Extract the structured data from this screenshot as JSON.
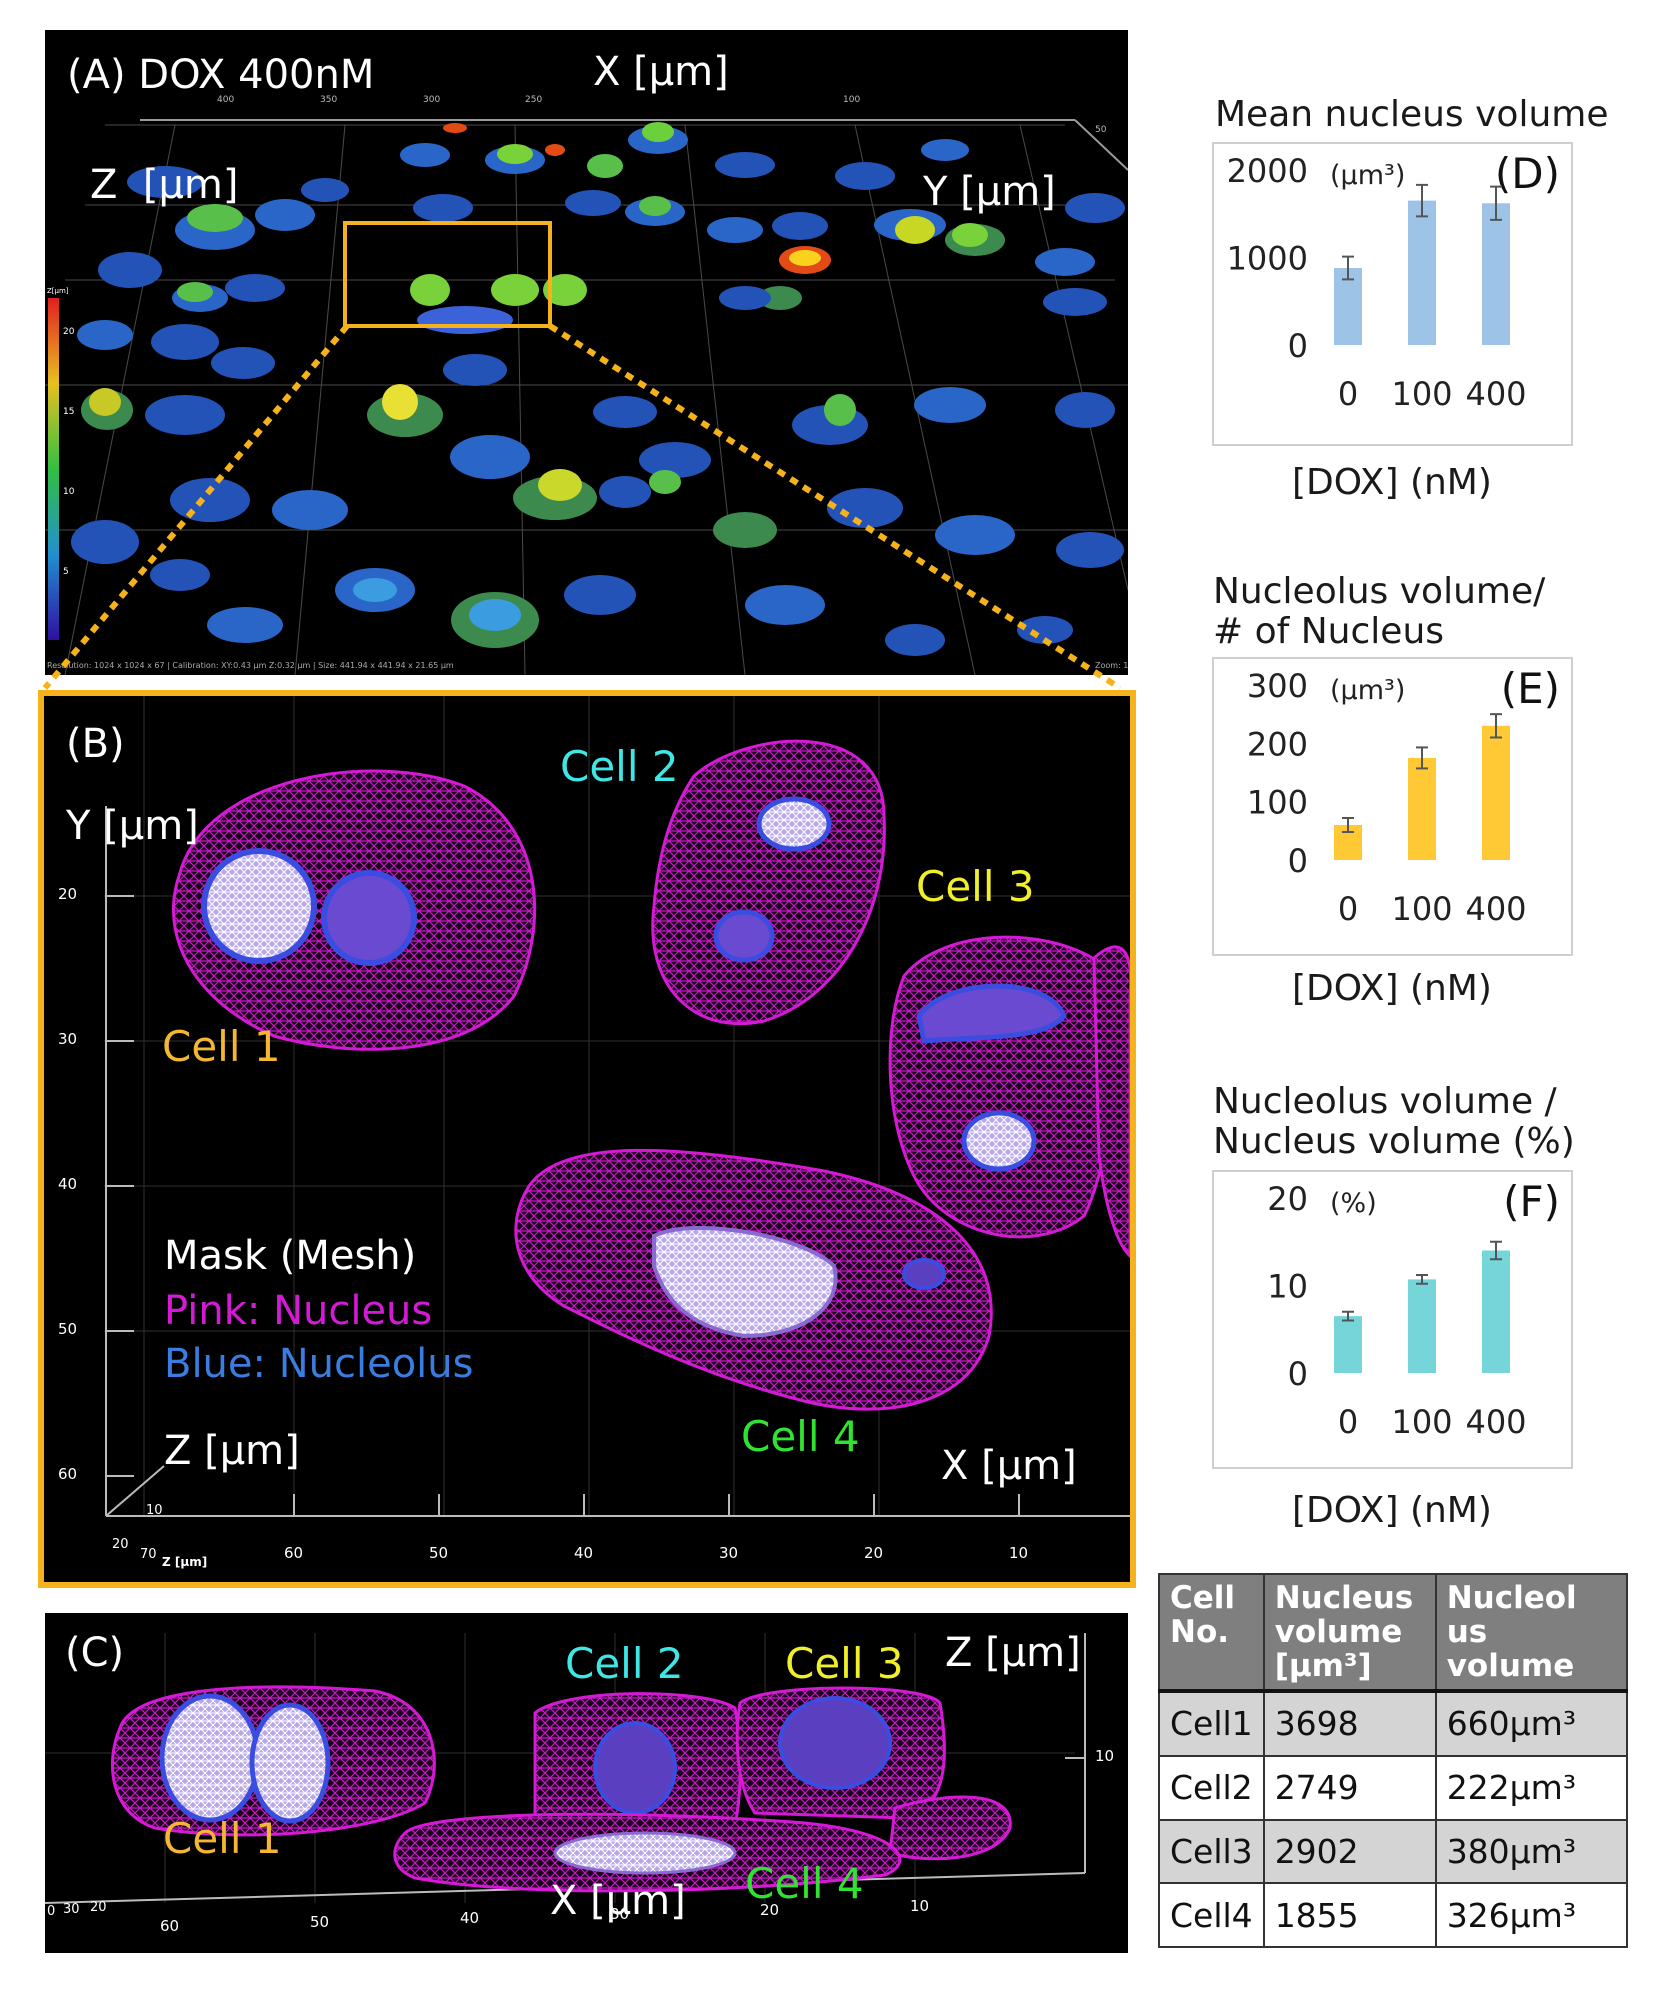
{
  "panel_a": {
    "label": "(A) DOX 400nM",
    "x_axis": "X [μm]",
    "y_axis": "Y [μm]",
    "z_axis": "Z  [μm]",
    "colorbar_title": "Z[μm]",
    "colorbar_ticks": [
      "20",
      "15",
      "10",
      "5"
    ],
    "top_ticks": [
      "400",
      "350",
      "300",
      "250",
      "100",
      "50"
    ],
    "footer": "Resolution: 1024 x 1024 x 67 | Calibration: XY:0.43 μm Z:0.32 μm | Size: 441.94 x 441.94 x 21.65 μm",
    "zoom": "Zoom: 1",
    "colors": {
      "nucleus": "#2d5fcf",
      "highlight": "#f6b21a",
      "box": "#f6b21a"
    }
  },
  "panel_b": {
    "label": "(B)",
    "y_axis": "Y [μm]",
    "z_axis": "Z [μm]",
    "x_axis": "X [μm]",
    "y_ticks": [
      "20",
      "30",
      "40",
      "50",
      "60"
    ],
    "x_ticks": [
      "60",
      "50",
      "40",
      "30",
      "20",
      "10"
    ],
    "corner_ticks": [
      "20",
      "70",
      "10"
    ],
    "corner_z_label": "Z [μm]",
    "cells": [
      "Cell 1",
      "Cell 2",
      "Cell 3",
      "Cell 4"
    ],
    "legend_title": "Mask (Mesh)",
    "legend_pink": "Pink: Nucleus",
    "legend_blue": "Blue: Nucleolus",
    "colors": {
      "cell1": "#f5b731",
      "cell2": "#3fe6e6",
      "cell3": "#f1ee2a",
      "cell4": "#31e331",
      "pink": "#d41ad4",
      "blue": "#3a7de0",
      "frame": "#f6b21a"
    }
  },
  "panel_c": {
    "label": "(C)",
    "z_axis": "Z [μm]",
    "x_axis": "X [μm]",
    "x_ticks": [
      "60",
      "50",
      "40",
      "30",
      "20",
      "10"
    ],
    "z_tick": "10",
    "corner_ticks": [
      "0",
      "30",
      "20"
    ],
    "cells": [
      "Cell 1",
      "Cell 2",
      "Cell 3",
      "Cell 4"
    ]
  },
  "table": {
    "headers": [
      "Cell No.",
      "Nucleus volume [μm³]",
      "Nucleol us volume"
    ],
    "rows": [
      [
        "Cell1",
        "3698",
        "660μm³"
      ],
      [
        "Cell2",
        "2749",
        "222μm³"
      ],
      [
        "Cell3",
        "2902",
        "380μm³"
      ],
      [
        "Cell4",
        "1855",
        "326μm³"
      ]
    ]
  },
  "chart_data": [
    {
      "type": "bar",
      "panel": "(D)",
      "title": "Mean nucleus volume",
      "unit_label": "(μm³)",
      "xlabel": "[DOX] (nM)",
      "categories": [
        "0",
        "100",
        "400"
      ],
      "values": [
        880,
        1650,
        1620
      ],
      "errors": [
        130,
        180,
        190
      ],
      "ylim": [
        0,
        2000
      ],
      "yticks": [
        0,
        1000,
        2000
      ],
      "color": "#9dc3e6"
    },
    {
      "type": "bar",
      "panel": "(E)",
      "title": "Nucleolus volume/\n# of Nucleus",
      "unit_label": "(μm³)",
      "xlabel": "[DOX] (nM)",
      "categories": [
        "0",
        "100",
        "400"
      ],
      "values": [
        60,
        175,
        230
      ],
      "errors": [
        12,
        18,
        20
      ],
      "ylim": [
        0,
        300
      ],
      "yticks": [
        0,
        100,
        200,
        300
      ],
      "color": "#ffc936"
    },
    {
      "type": "bar",
      "panel": "(F)",
      "title": "Nucleolus volume /\nNucleus volume (%)",
      "unit_label": "(%)",
      "xlabel": "[DOX] (nM)",
      "categories": [
        "0",
        "100",
        "400"
      ],
      "values": [
        6.5,
        10.7,
        14.0
      ],
      "errors": [
        0.5,
        0.5,
        1.0
      ],
      "ylim": [
        0,
        20
      ],
      "yticks": [
        0,
        10,
        20
      ],
      "color": "#76d5d9"
    }
  ]
}
